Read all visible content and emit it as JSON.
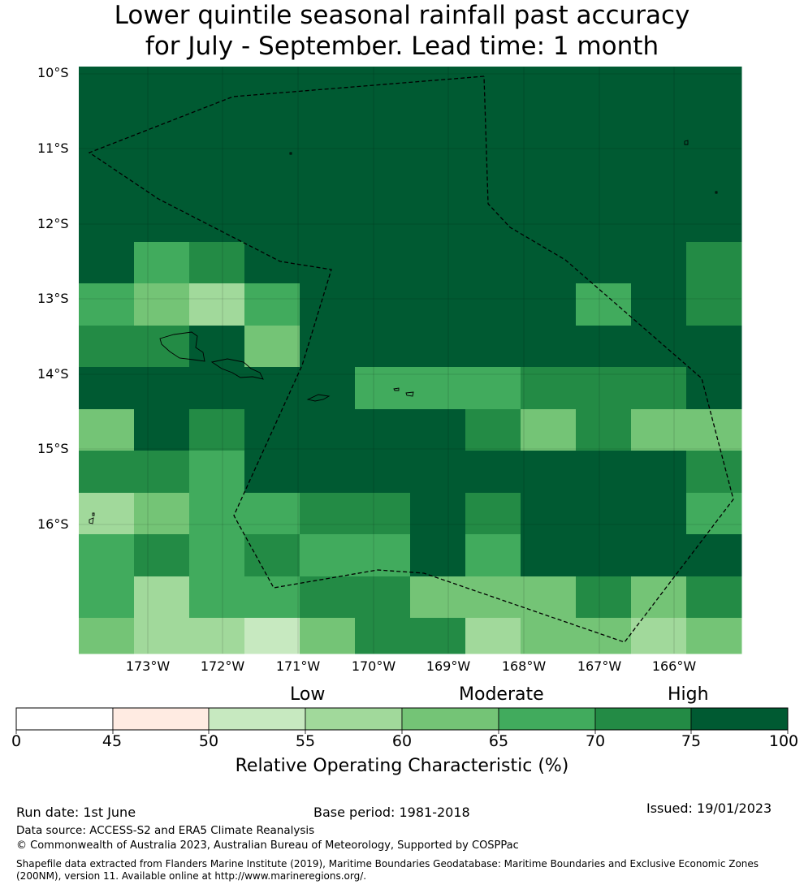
{
  "title": {
    "line1": "Lower quintile seasonal rainfall past accuracy",
    "line2": "for July - September. Lead time: 1 month"
  },
  "map": {
    "lat_labels": [
      "10°S",
      "11°S",
      "12°S",
      "13°S",
      "14°S",
      "15°S",
      "16°S"
    ],
    "lon_labels": [
      "173°W",
      "172°W",
      "171°W",
      "170°W",
      "169°W",
      "168°W",
      "167°W",
      "166°W"
    ],
    "grid_rows_roc_class": [
      [
        75,
        75,
        75,
        75,
        75,
        75,
        75,
        75,
        75,
        75,
        75,
        75
      ],
      [
        75,
        75,
        75,
        75,
        75,
        75,
        75,
        75,
        75,
        75,
        75,
        75
      ],
      [
        75,
        75,
        75,
        75,
        75,
        75,
        75,
        75,
        75,
        75,
        75,
        75
      ],
      [
        75,
        75,
        75,
        75,
        75,
        75,
        75,
        75,
        75,
        75,
        75,
        75
      ],
      [
        75,
        65,
        70,
        75,
        75,
        75,
        75,
        75,
        75,
        75,
        75,
        70
      ],
      [
        65,
        60,
        55,
        65,
        75,
        75,
        75,
        75,
        75,
        65,
        75,
        70
      ],
      [
        70,
        70,
        75,
        60,
        75,
        75,
        75,
        75,
        75,
        75,
        75,
        75
      ],
      [
        75,
        75,
        75,
        75,
        75,
        65,
        65,
        65,
        70,
        70,
        70,
        75
      ],
      [
        60,
        75,
        70,
        75,
        75,
        75,
        75,
        70,
        60,
        70,
        60,
        60
      ],
      [
        70,
        70,
        65,
        75,
        75,
        75,
        75,
        75,
        75,
        75,
        75,
        70
      ],
      [
        55,
        60,
        65,
        65,
        70,
        70,
        75,
        70,
        75,
        75,
        75,
        65
      ],
      [
        65,
        70,
        65,
        70,
        65,
        65,
        75,
        65,
        75,
        75,
        75,
        75
      ],
      [
        65,
        55,
        65,
        65,
        70,
        70,
        60,
        60,
        60,
        70,
        60,
        70
      ],
      [
        60,
        55,
        55,
        50,
        60,
        70,
        70,
        55,
        60,
        60,
        55,
        60
      ]
    ],
    "colors": {
      "land_outline": "#000000",
      "eez_outline": "#000000"
    }
  },
  "colorbar": {
    "category_labels": [
      "Low",
      "Moderate",
      "High"
    ],
    "ticks": [
      "0",
      "45",
      "50",
      "55",
      "60",
      "65",
      "70",
      "75",
      "100"
    ],
    "bin_colors": [
      "#ffffff",
      "#ffebe2",
      "#c7e9c0",
      "#a1d99b",
      "#74c476",
      "#41ab5d",
      "#238b45",
      "#005a32"
    ],
    "xlabel": "Relative Operating Characteristic (%)"
  },
  "footer": {
    "run_date": "Run date: 1st June",
    "base_period": "Base period: 1981-2018",
    "issued": "Issued: 19/01/2023",
    "data_source": "Data source: ACCESS-S2 and ERA5 Climate Reanalysis",
    "copyright": "© Commonwealth of Australia 2023, Australian Bureau of Meteorology, Supported by COSPPac",
    "shapefile_note": "Shapefile data extracted from Flanders Marine Institute (2019), Maritime Boundaries Geodatabase: Maritime Boundaries and Exclusive Economic Zones (200NM), version 11. Available online at http://www.marineregions.org/."
  }
}
